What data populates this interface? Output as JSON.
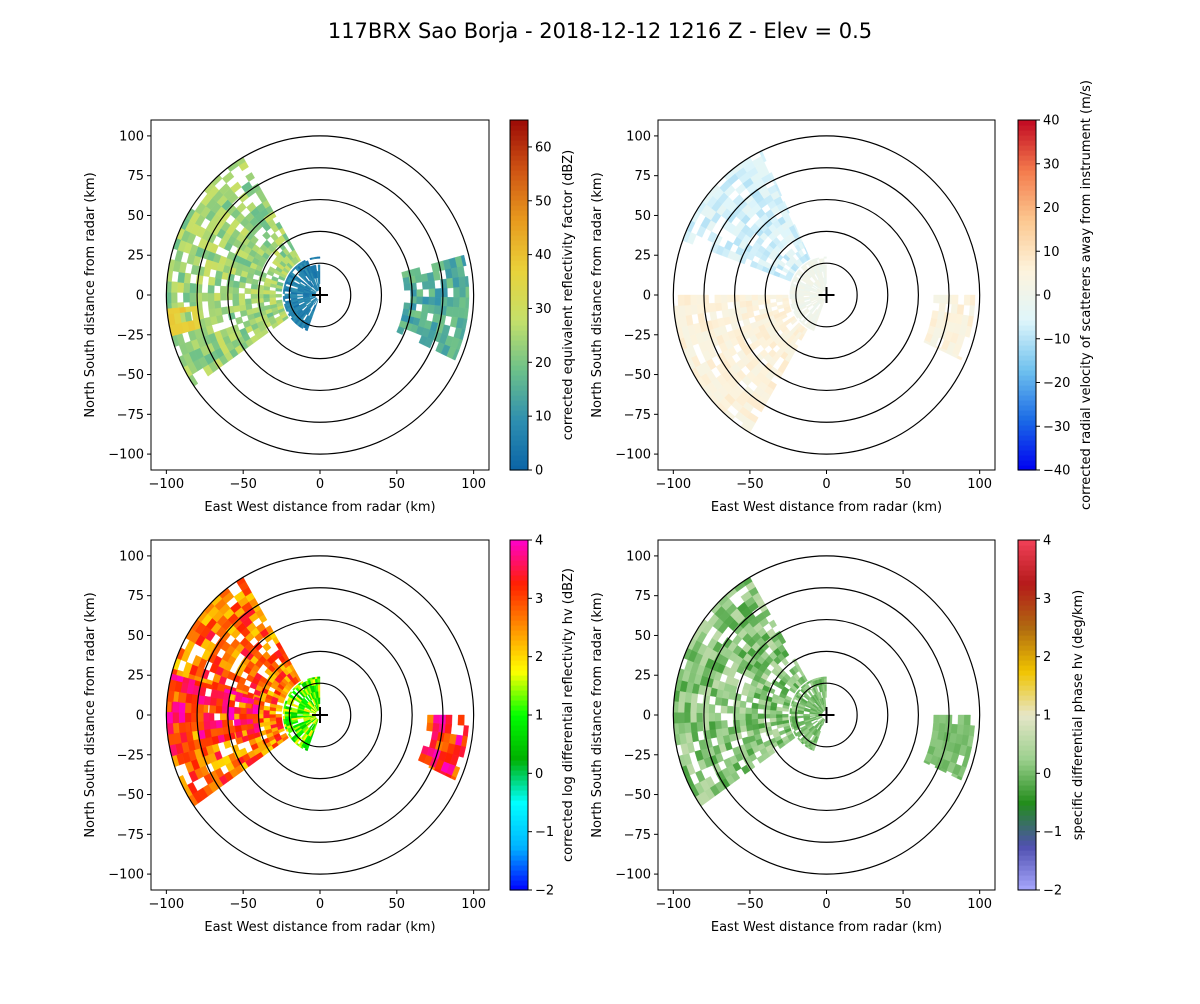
{
  "figure": {
    "title": "117BRX Sao Borja - 2018-12-12 1216 Z -  Elev = 0.5"
  },
  "chart_data": [
    {
      "type": "heatmap",
      "subtype": "radar-ppi",
      "panel": "reflectivity",
      "xlabel": "East West distance from radar (km)",
      "ylabel": "North South distance from radar (km)",
      "xlim": [
        -110,
        110
      ],
      "ylim": [
        -110,
        110
      ],
      "xticks": [
        -100,
        -50,
        0,
        50,
        100
      ],
      "yticks": [
        -100,
        -75,
        -50,
        -25,
        0,
        25,
        50,
        75,
        100
      ],
      "range_rings_km": [
        20,
        40,
        60,
        80,
        100
      ],
      "colorbar": {
        "label": "corrected equivalent reflectivity factor (dBZ)",
        "min": 0,
        "max": 65,
        "ticks": [
          0,
          10,
          20,
          30,
          40,
          50,
          60
        ],
        "colors": [
          "#0a64a6",
          "#2e8fb0",
          "#6cc08a",
          "#c4e06a",
          "#e9d23a",
          "#e89a1e",
          "#cf5413",
          "#9b0a06"
        ]
      },
      "echoes": [
        {
          "az_start": 235,
          "az_end": 330,
          "r_min": 25,
          "r_max": 100,
          "value_range": [
            18,
            30
          ],
          "mean": 25
        },
        {
          "az_start": 255,
          "az_end": 265,
          "r_min": 80,
          "r_max": 100,
          "value_range": [
            34,
            40
          ],
          "mean": 37
        },
        {
          "az_start": 200,
          "az_end": 360,
          "r_min": 3,
          "r_max": 24,
          "value_range": [
            3,
            10
          ],
          "mean": 6
        },
        {
          "az_start": 75,
          "az_end": 115,
          "r_min": 55,
          "r_max": 97,
          "value_range": [
            10,
            20
          ],
          "mean": 15
        }
      ]
    },
    {
      "type": "heatmap",
      "subtype": "radar-ppi",
      "panel": "velocity",
      "xlabel": "East West distance from radar (km)",
      "ylabel": "North South distance from radar (km)",
      "xlim": [
        -110,
        110
      ],
      "ylim": [
        -110,
        110
      ],
      "xticks": [
        -100,
        -50,
        0,
        50,
        100
      ],
      "yticks": [
        -100,
        -75,
        -50,
        -25,
        0,
        25,
        50,
        75,
        100
      ],
      "range_rings_km": [
        20,
        40,
        60,
        80,
        100
      ],
      "colorbar": {
        "label": "corrected radial velocity of scatterers away from instrument (m/s)",
        "min": -40,
        "max": 40,
        "ticks": [
          -40,
          -30,
          -20,
          -10,
          0,
          10,
          20,
          30,
          40
        ],
        "colors": [
          "#0000f0",
          "#1a6ae6",
          "#6fc1ee",
          "#dff6fb",
          "#fdf3dc",
          "#fcc890",
          "#f47a4c",
          "#c10822"
        ]
      },
      "echoes": [
        {
          "az_start": 290,
          "az_end": 335,
          "r_min": 25,
          "r_max": 100,
          "value_range": [
            -10,
            -3
          ],
          "mean": -6
        },
        {
          "az_start": 210,
          "az_end": 270,
          "r_min": 25,
          "r_max": 100,
          "value_range": [
            3,
            8
          ],
          "mean": 5
        },
        {
          "az_start": 200,
          "az_end": 360,
          "r_min": 3,
          "r_max": 24,
          "value_range": [
            -1,
            2
          ],
          "mean": 1
        },
        {
          "az_start": 90,
          "az_end": 115,
          "r_min": 70,
          "r_max": 97,
          "value_range": [
            2,
            8
          ],
          "mean": 4
        }
      ]
    },
    {
      "type": "heatmap",
      "subtype": "radar-ppi",
      "panel": "differential-reflectivity",
      "xlabel": "East West distance from radar (km)",
      "ylabel": "North South distance from radar (km)",
      "xlim": [
        -110,
        110
      ],
      "ylim": [
        -110,
        110
      ],
      "xticks": [
        -100,
        -50,
        0,
        50,
        100
      ],
      "yticks": [
        -100,
        -75,
        -50,
        -25,
        0,
        25,
        50,
        75,
        100
      ],
      "range_rings_km": [
        20,
        40,
        60,
        80,
        100
      ],
      "colorbar": {
        "label": "corrected log differential reflectivity hv (dBZ)",
        "min": -2,
        "max": 4,
        "ticks": [
          -2,
          -1,
          0,
          1,
          2,
          3,
          4
        ],
        "colors": [
          "#0000ff",
          "#00b4ff",
          "#00ffff",
          "#00b000",
          "#00ff00",
          "#ffff00",
          "#ff9000",
          "#ff2000",
          "#ff00cc"
        ]
      },
      "echoes": [
        {
          "az_start": 235,
          "az_end": 330,
          "r_min": 25,
          "r_max": 100,
          "value_range": [
            2,
            3.5
          ],
          "mean": 2.6
        },
        {
          "az_start": 255,
          "az_end": 285,
          "r_min": 40,
          "r_max": 100,
          "value_range": [
            2.8,
            4
          ],
          "mean": 3.3
        },
        {
          "az_start": 200,
          "az_end": 360,
          "r_min": 3,
          "r_max": 24,
          "value_range": [
            0.5,
            2
          ],
          "mean": 1.2
        },
        {
          "az_start": 90,
          "az_end": 115,
          "r_min": 70,
          "r_max": 97,
          "value_range": [
            2.5,
            4
          ],
          "mean": 3
        }
      ]
    },
    {
      "type": "heatmap",
      "subtype": "radar-ppi",
      "panel": "specific-differential-phase",
      "xlabel": "East West distance from radar (km)",
      "ylabel": "North South distance from radar (km)",
      "xlim": [
        -110,
        110
      ],
      "ylim": [
        -110,
        110
      ],
      "xticks": [
        -100,
        -50,
        0,
        50,
        100
      ],
      "yticks": [
        -100,
        -75,
        -50,
        -25,
        0,
        25,
        50,
        75,
        100
      ],
      "range_rings_km": [
        20,
        40,
        60,
        80,
        100
      ],
      "colorbar": {
        "label": "specific differential phase hv (deg/km)",
        "min": -2,
        "max": 4,
        "ticks": [
          -2,
          -1,
          0,
          1,
          2,
          3,
          4
        ],
        "colors": [
          "#a8a8ff",
          "#5050b0",
          "#238d1c",
          "#9cd08e",
          "#e6e6c8",
          "#f0c400",
          "#b06a10",
          "#b51a1a",
          "#f04058"
        ]
      },
      "echoes": [
        {
          "az_start": 235,
          "az_end": 330,
          "r_min": 25,
          "r_max": 100,
          "value_range": [
            -0.3,
            0.6
          ],
          "mean": 0.2
        },
        {
          "az_start": 200,
          "az_end": 360,
          "r_min": 3,
          "r_max": 24,
          "value_range": [
            -0.2,
            0.3
          ],
          "mean": 0.05
        },
        {
          "az_start": 90,
          "az_end": 115,
          "r_min": 70,
          "r_max": 97,
          "value_range": [
            -0.1,
            0.2
          ],
          "mean": 0.05
        }
      ]
    }
  ]
}
